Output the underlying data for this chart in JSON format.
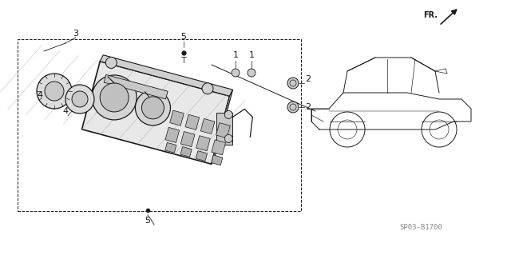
{
  "bg_color": "#ffffff",
  "line_color": "#1a1a1a",
  "watermark": "SP03-B1700",
  "figsize": [
    6.4,
    3.19
  ],
  "dpi": 100
}
